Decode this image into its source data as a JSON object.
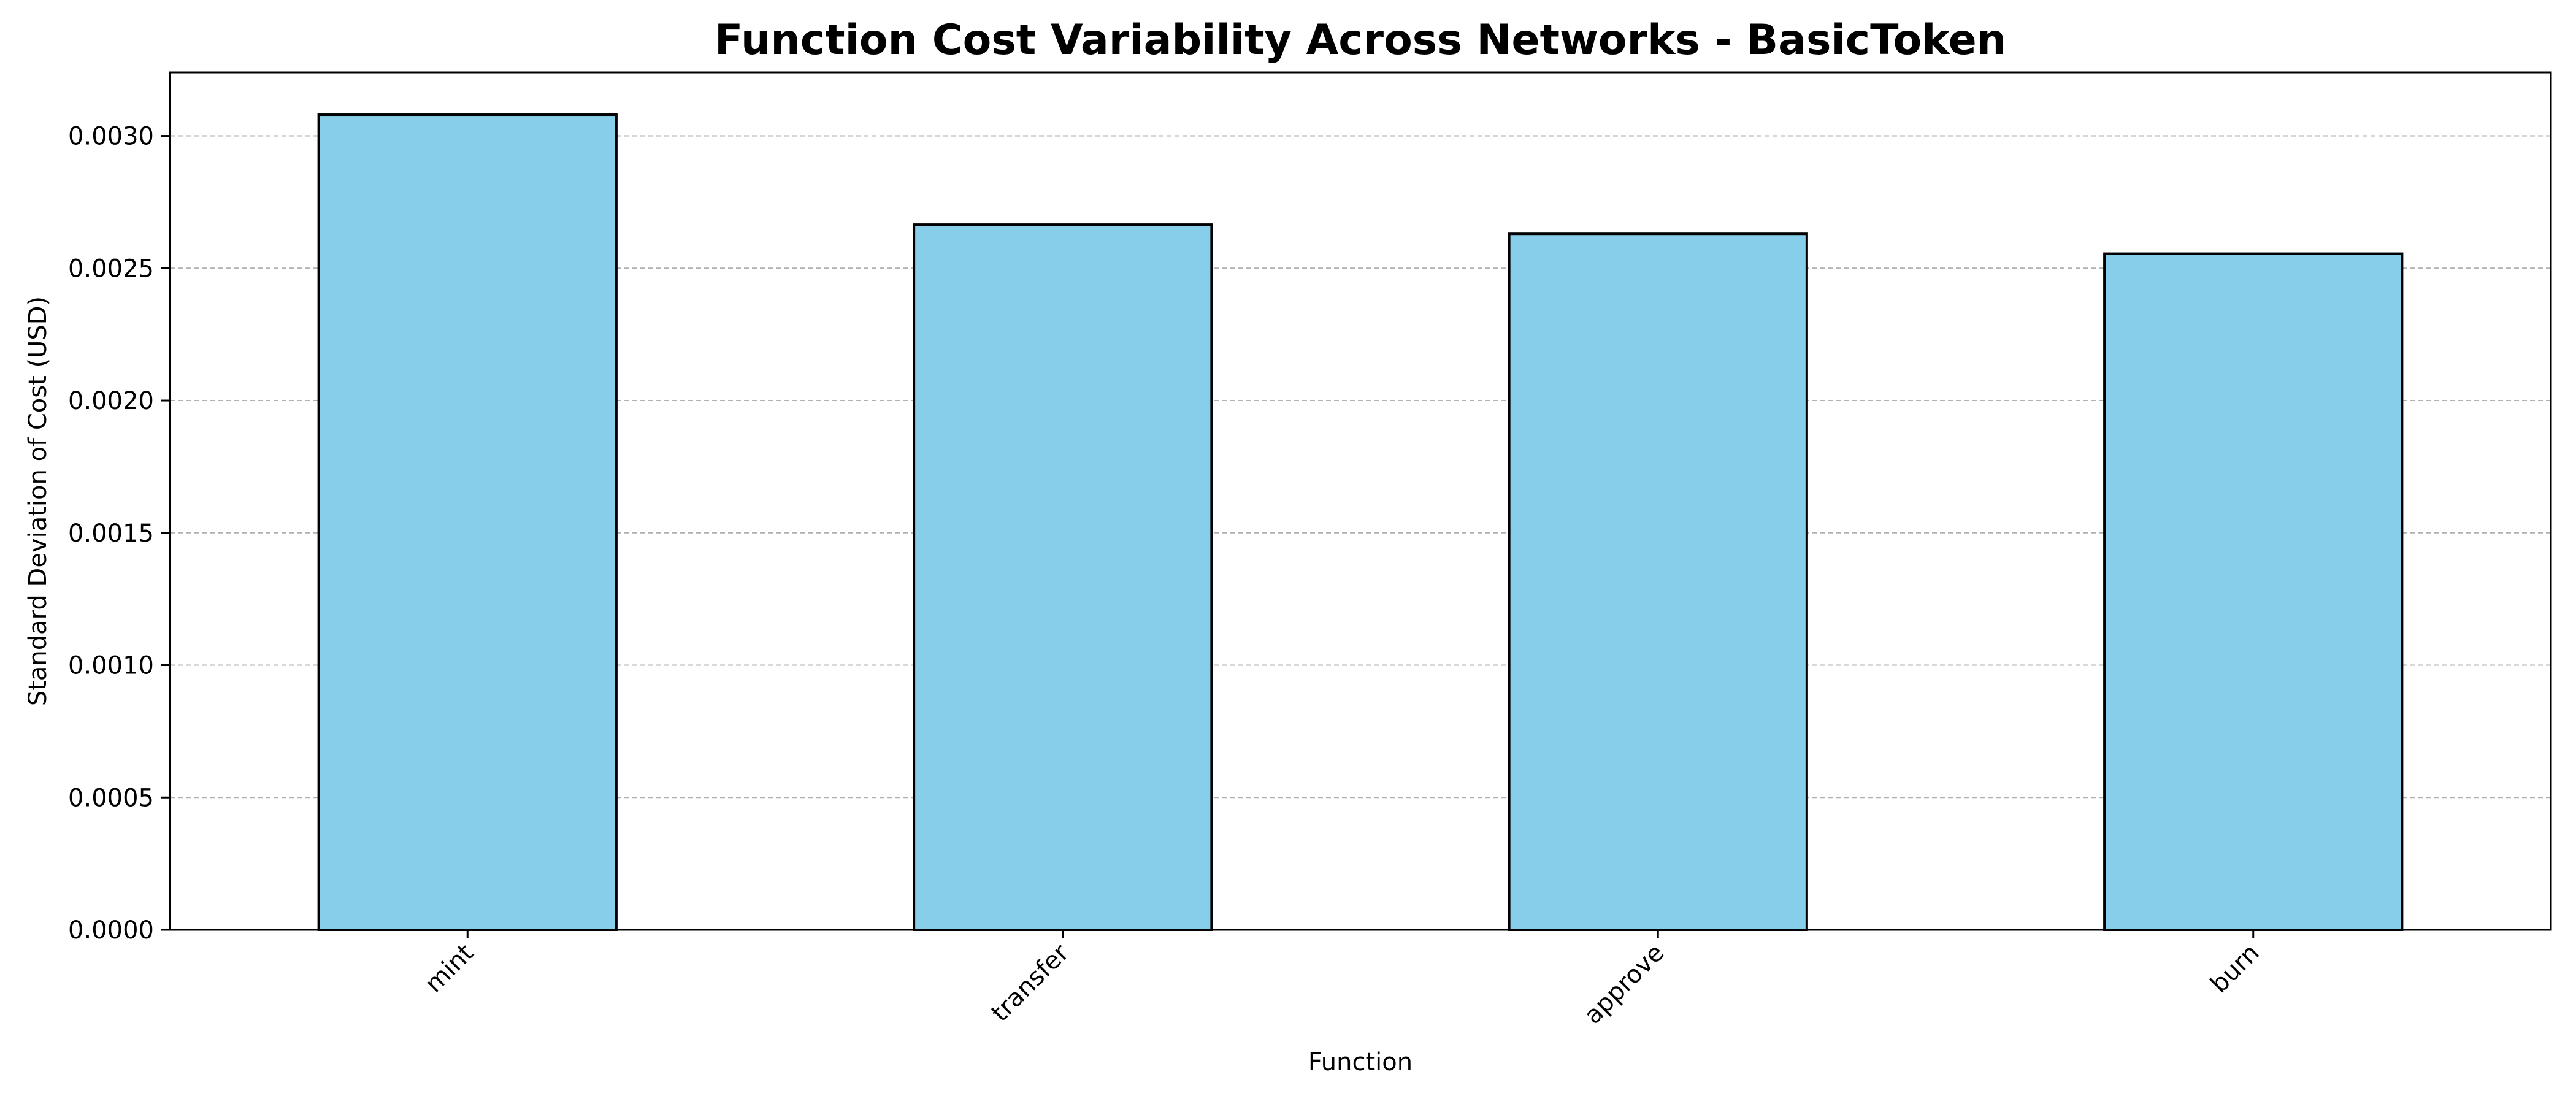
{
  "chart_data": {
    "type": "bar",
    "title": "Function Cost Variability Across Networks - BasicToken",
    "xlabel": "Function",
    "ylabel": "Standard Deviation of Cost (USD)",
    "categories": [
      "mint",
      "transfer",
      "approve",
      "burn"
    ],
    "values": [
      0.00308,
      0.002665,
      0.00263,
      0.002555
    ],
    "ylim": [
      0,
      0.00324
    ],
    "yticks": [
      0.0,
      0.0005,
      0.001,
      0.0015,
      0.002,
      0.0025,
      0.003
    ],
    "ytick_labels": [
      "0.0000",
      "0.0005",
      "0.0010",
      "0.0015",
      "0.0020",
      "0.0025",
      "0.0030"
    ],
    "grid": "y-dashed",
    "bar_color": "#87CEEB",
    "bar_edge_color": "#000000",
    "grid_color": "#b0b0b0"
  }
}
